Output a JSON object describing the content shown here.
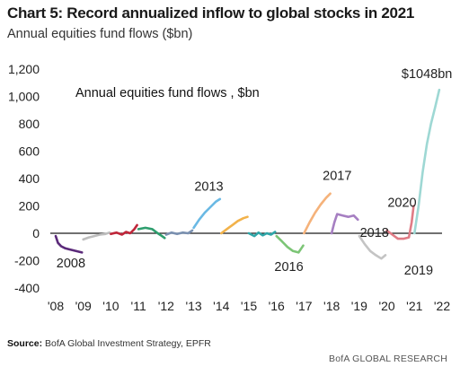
{
  "header": {
    "title": "Chart 5: Record annualized inflow to global stocks in 2021",
    "subtitle": "Annual equities fund flows ($bn)"
  },
  "footer": {
    "source_label": "Source:",
    "source_text": "BofA Global Investment Strategy, EPFR",
    "brand": "BofA GLOBAL RESEARCH"
  },
  "chart_data": {
    "type": "line",
    "title": "Annual equities fund flows , $bn",
    "ylim": [
      -400,
      1200
    ],
    "xlim": [
      2008,
      2022
    ],
    "yticks": [
      -400,
      -200,
      0,
      200,
      400,
      600,
      800,
      1000,
      1200
    ],
    "ytick_labels": [
      "-400",
      "-200",
      "0",
      "200",
      "400",
      "600",
      "800",
      "1,000",
      "1,200"
    ],
    "xticks": [
      2008,
      2009,
      2010,
      2011,
      2012,
      2013,
      2014,
      2015,
      2016,
      2017,
      2018,
      2019,
      2020,
      2021,
      2022
    ],
    "xtick_labels": [
      "'08",
      "'09",
      "'10",
      "'11",
      "'12",
      "'13",
      "'14",
      "'15",
      "'16",
      "'17",
      "'18",
      "'19",
      "'20",
      "'21",
      "'22"
    ],
    "zero_line": true,
    "grid": false,
    "series": [
      {
        "color": "#5b2a7a",
        "points": [
          [
            2008.0,
            -20
          ],
          [
            2008.08,
            -70
          ],
          [
            2008.2,
            -95
          ],
          [
            2008.35,
            -110
          ],
          [
            2008.5,
            -118
          ],
          [
            2008.7,
            -128
          ],
          [
            2008.85,
            -135
          ],
          [
            2008.95,
            -140
          ]
        ]
      },
      {
        "color": "#bdbdbd",
        "points": [
          [
            2009.0,
            -45
          ],
          [
            2009.2,
            -30
          ],
          [
            2009.4,
            -20
          ],
          [
            2009.6,
            -10
          ],
          [
            2009.8,
            -5
          ],
          [
            2009.95,
            5
          ]
        ]
      },
      {
        "color": "#c0263a",
        "points": [
          [
            2010.0,
            -5
          ],
          [
            2010.2,
            5
          ],
          [
            2010.4,
            -10
          ],
          [
            2010.55,
            10
          ],
          [
            2010.7,
            0
          ],
          [
            2010.85,
            30
          ],
          [
            2010.95,
            60
          ]
        ]
      },
      {
        "color": "#2e9e6e",
        "points": [
          [
            2011.0,
            30
          ],
          [
            2011.25,
            40
          ],
          [
            2011.5,
            30
          ],
          [
            2011.7,
            0
          ],
          [
            2011.85,
            -20
          ],
          [
            2011.95,
            -35
          ]
        ]
      },
      {
        "color": "#7a90b0",
        "points": [
          [
            2012.0,
            -10
          ],
          [
            2012.2,
            5
          ],
          [
            2012.4,
            -5
          ],
          [
            2012.6,
            5
          ],
          [
            2012.8,
            0
          ],
          [
            2012.95,
            20
          ]
        ]
      },
      {
        "color": "#6ab9e4",
        "points": [
          [
            2013.0,
            40
          ],
          [
            2013.2,
            100
          ],
          [
            2013.4,
            150
          ],
          [
            2013.6,
            190
          ],
          [
            2013.8,
            230
          ],
          [
            2013.95,
            250
          ]
        ]
      },
      {
        "color": "#f2b24a",
        "points": [
          [
            2014.0,
            0
          ],
          [
            2014.2,
            30
          ],
          [
            2014.4,
            60
          ],
          [
            2014.6,
            90
          ],
          [
            2014.8,
            110
          ],
          [
            2014.95,
            120
          ]
        ]
      },
      {
        "color": "#2fa6a8",
        "points": [
          [
            2015.0,
            0
          ],
          [
            2015.2,
            -20
          ],
          [
            2015.35,
            5
          ],
          [
            2015.5,
            -15
          ],
          [
            2015.65,
            0
          ],
          [
            2015.8,
            -10
          ],
          [
            2015.95,
            10
          ]
        ]
      },
      {
        "color": "#7cc576",
        "points": [
          [
            2016.0,
            -20
          ],
          [
            2016.2,
            -60
          ],
          [
            2016.4,
            -100
          ],
          [
            2016.6,
            -130
          ],
          [
            2016.8,
            -140
          ],
          [
            2016.9,
            -110
          ],
          [
            2016.97,
            -90
          ]
        ]
      },
      {
        "color": "#f5b27a",
        "points": [
          [
            2017.0,
            0
          ],
          [
            2017.2,
            80
          ],
          [
            2017.4,
            150
          ],
          [
            2017.6,
            210
          ],
          [
            2017.8,
            260
          ],
          [
            2017.95,
            290
          ]
        ]
      },
      {
        "color": "#a67fc2",
        "points": [
          [
            2018.0,
            0
          ],
          [
            2018.1,
            80
          ],
          [
            2018.2,
            140
          ],
          [
            2018.4,
            130
          ],
          [
            2018.6,
            120
          ],
          [
            2018.8,
            130
          ],
          [
            2018.95,
            100
          ]
        ]
      },
      {
        "color": "#c4c4c4",
        "points": [
          [
            2019.0,
            -20
          ],
          [
            2019.2,
            -80
          ],
          [
            2019.4,
            -130
          ],
          [
            2019.6,
            -160
          ],
          [
            2019.8,
            -185
          ],
          [
            2019.95,
            -160
          ]
        ]
      },
      {
        "color": "#e07c86",
        "points": [
          [
            2020.0,
            20
          ],
          [
            2020.2,
            -10
          ],
          [
            2020.4,
            -40
          ],
          [
            2020.6,
            -40
          ],
          [
            2020.8,
            -30
          ],
          [
            2020.9,
            80
          ],
          [
            2020.97,
            200
          ]
        ]
      },
      {
        "color": "#9ed8d4",
        "points": [
          [
            2021.0,
            0
          ],
          [
            2021.15,
            200
          ],
          [
            2021.3,
            450
          ],
          [
            2021.45,
            650
          ],
          [
            2021.6,
            800
          ],
          [
            2021.75,
            920
          ],
          [
            2021.9,
            1048
          ]
        ]
      }
    ],
    "annotations": [
      {
        "text": "2008",
        "x": 2008.55,
        "y": -250
      },
      {
        "text": "2013",
        "x": 2013.55,
        "y": 310
      },
      {
        "text": "2016",
        "x": 2016.45,
        "y": -275
      },
      {
        "text": "2017",
        "x": 2018.2,
        "y": 390
      },
      {
        "text": "2018",
        "x": 2019.55,
        "y": -25
      },
      {
        "text": "2020",
        "x": 2020.55,
        "y": 195
      },
      {
        "text": "2019",
        "x": 2021.15,
        "y": -300
      },
      {
        "text": "$1048bn",
        "x": 2021.45,
        "y": 1135
      }
    ]
  }
}
